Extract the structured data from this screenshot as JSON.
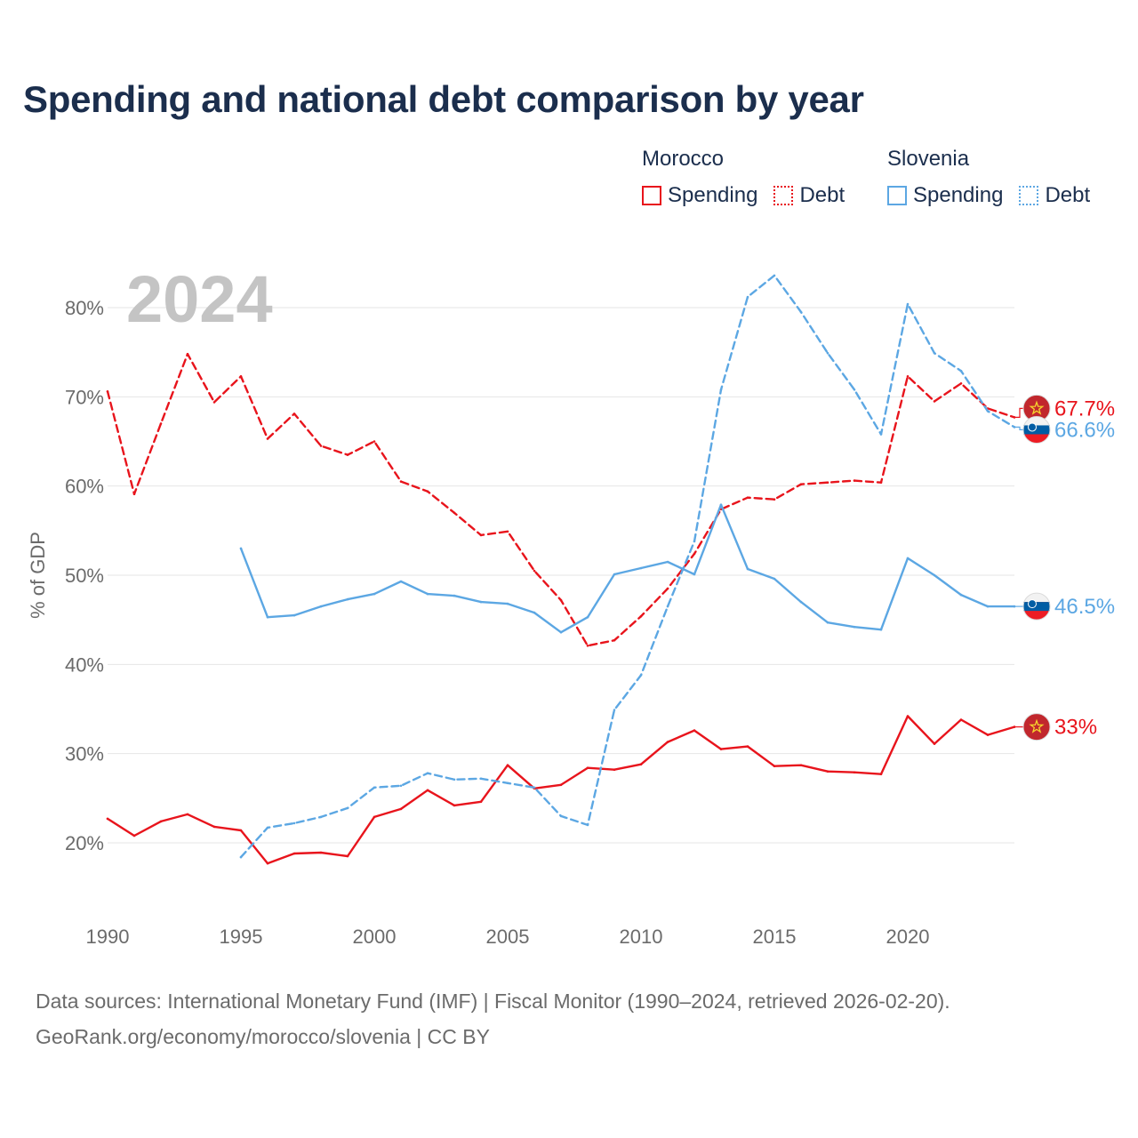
{
  "title": "Spending and national debt comparison by year",
  "legend": {
    "groups": [
      {
        "name": "Morocco",
        "items": [
          {
            "label": "Spending",
            "color": "#e8141c",
            "style": "solid"
          },
          {
            "label": "Debt",
            "color": "#e8141c",
            "style": "dotted"
          }
        ]
      },
      {
        "name": "Slovenia",
        "items": [
          {
            "label": "Spending",
            "color": "#5ca7e3",
            "style": "solid"
          },
          {
            "label": "Debt",
            "color": "#5ca7e3",
            "style": "dotted"
          }
        ]
      }
    ]
  },
  "year_watermark": "2024",
  "footer": {
    "line1": "Data sources: International Monetary Fund (IMF) | Fiscal Monitor (1990–2024, retrieved 2026-02-20).",
    "line2": "GeoRank.org/economy/morocco/slovenia | CC BY"
  },
  "colors": {
    "morocco": "#e8141c",
    "slovenia": "#5ca7e3",
    "title": "#1b2e4d",
    "grid": "#e6e6e6",
    "axis_text": "#6b6b6b",
    "watermark": "#c4c4c4"
  },
  "chart_data": {
    "type": "line",
    "title": "Spending and national debt comparison by year",
    "xlabel": "",
    "ylabel": "% of GDP",
    "xlim": [
      1990,
      2024
    ],
    "ylim": [
      12,
      90
    ],
    "grid": true,
    "legend_position": "top-right",
    "x_ticks": [
      1990,
      1995,
      2000,
      2005,
      2010,
      2015,
      2020
    ],
    "y_ticks": [
      20,
      30,
      40,
      50,
      60,
      70,
      80
    ],
    "tick_format": "{v}%",
    "series": [
      {
        "id": "morocco_spending",
        "name": "Morocco Spending",
        "country": "Morocco",
        "flag": "morocco",
        "color": "#e8141c",
        "dash": false,
        "end_label": "33%",
        "x": [
          1990,
          1991,
          1992,
          1993,
          1994,
          1995,
          1996,
          1997,
          1998,
          1999,
          2000,
          2001,
          2002,
          2003,
          2004,
          2005,
          2006,
          2007,
          2008,
          2009,
          2010,
          2011,
          2012,
          2013,
          2014,
          2015,
          2016,
          2017,
          2018,
          2019,
          2020,
          2021,
          2022,
          2023,
          2024
        ],
        "values": [
          22.7,
          20.8,
          22.4,
          23.2,
          21.8,
          21.4,
          17.7,
          18.8,
          18.9,
          18.5,
          22.9,
          23.8,
          25.9,
          24.2,
          24.6,
          28.7,
          26.1,
          26.5,
          28.4,
          28.2,
          28.8,
          31.3,
          32.6,
          30.5,
          30.8,
          28.6,
          28.7,
          28.0,
          27.9,
          27.7,
          34.2,
          31.1,
          33.8,
          32.1,
          33.0
        ]
      },
      {
        "id": "morocco_debt",
        "name": "Morocco Debt",
        "country": "Morocco",
        "flag": "morocco",
        "color": "#e8141c",
        "dash": true,
        "end_label": "67.7%",
        "x": [
          1990,
          1991,
          1992,
          1993,
          1994,
          1995,
          1996,
          1997,
          1998,
          1999,
          2000,
          2001,
          2002,
          2003,
          2004,
          2005,
          2006,
          2007,
          2008,
          2009,
          2010,
          2011,
          2012,
          2013,
          2014,
          2015,
          2016,
          2017,
          2018,
          2019,
          2020,
          2021,
          2022,
          2023,
          2024
        ],
        "values": [
          70.6,
          59.1,
          67.0,
          74.8,
          69.4,
          72.3,
          65.3,
          68.1,
          64.5,
          63.5,
          65.0,
          60.5,
          59.4,
          57.0,
          54.5,
          54.9,
          50.5,
          47.2,
          42.1,
          42.7,
          45.4,
          48.5,
          52.4,
          57.4,
          58.7,
          58.5,
          60.2,
          60.4,
          60.6,
          60.4,
          72.3,
          69.5,
          71.5,
          68.7,
          67.7
        ]
      },
      {
        "id": "slovenia_spending",
        "name": "Slovenia Spending",
        "country": "Slovenia",
        "flag": "slovenia",
        "color": "#5ca7e3",
        "dash": false,
        "end_label": "46.5%",
        "x": [
          1995,
          1996,
          1997,
          1998,
          1999,
          2000,
          2001,
          2002,
          2003,
          2004,
          2005,
          2006,
          2007,
          2008,
          2009,
          2010,
          2011,
          2012,
          2013,
          2014,
          2015,
          2016,
          2017,
          2018,
          2019,
          2020,
          2021,
          2022,
          2023,
          2024
        ],
        "values": [
          53.0,
          45.3,
          45.5,
          46.5,
          47.3,
          47.9,
          49.3,
          47.9,
          47.7,
          47.0,
          46.8,
          45.8,
          43.6,
          45.3,
          50.1,
          50.8,
          51.5,
          50.1,
          57.9,
          50.7,
          49.6,
          47.0,
          44.7,
          44.2,
          43.9,
          51.9,
          50.0,
          47.8,
          46.5,
          46.5
        ]
      },
      {
        "id": "slovenia_debt",
        "name": "Slovenia Debt",
        "country": "Slovenia",
        "flag": "slovenia",
        "color": "#5ca7e3",
        "dash": true,
        "end_label": "66.6%",
        "x": [
          1995,
          1996,
          1997,
          1998,
          1999,
          2000,
          2001,
          2002,
          2003,
          2004,
          2005,
          2006,
          2007,
          2008,
          2009,
          2010,
          2011,
          2012,
          2013,
          2014,
          2015,
          2016,
          2017,
          2018,
          2019,
          2020,
          2021,
          2022,
          2023,
          2024
        ],
        "values": [
          18.4,
          21.7,
          22.2,
          22.9,
          23.9,
          26.2,
          26.4,
          27.8,
          27.1,
          27.2,
          26.7,
          26.2,
          23.0,
          22.0,
          34.9,
          38.8,
          46.5,
          53.8,
          70.8,
          81.2,
          83.6,
          79.5,
          74.9,
          70.8,
          65.8,
          80.4,
          74.9,
          72.9,
          68.4,
          66.6
        ]
      }
    ]
  }
}
